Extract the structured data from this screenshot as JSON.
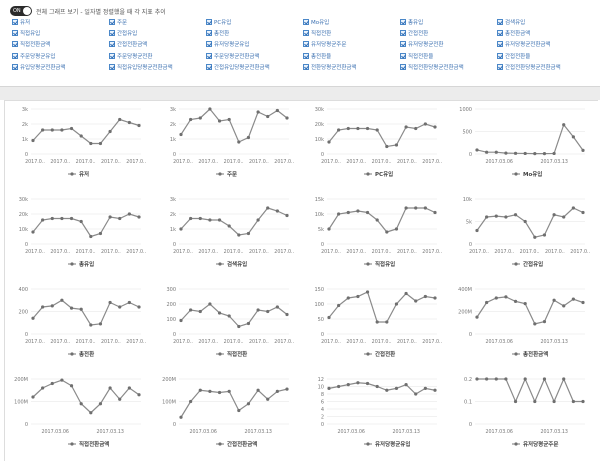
{
  "toggle": {
    "state": "ON",
    "label": "전체 그래프 보기 - 일자별 정렬했을 때 각 지표 추이"
  },
  "checkboxes": [
    "유저",
    "주문",
    "PC유입",
    "Mo유입",
    "총유입",
    "검색유입",
    "직접유입",
    "간접유입",
    "총전환",
    "직접전환",
    "간접전환",
    "총전환금액",
    "직접전환금액",
    "간접전환금액",
    "유저당평균유입",
    "유저당평균주문",
    "유저당평균전환",
    "유저당평균전환금액",
    "주문당평균유입",
    "주문당평균전환",
    "주문당평균전환금액",
    "총전환율",
    "직접전환율",
    "간접전환율",
    "유입당평균전환금액",
    "직접유입당평균전환금액",
    "간접유입당평균전환금액",
    "전환당평균전환금액",
    "직접전환당평균전환금액",
    "간접전환당평균전환금액"
  ],
  "chart_data": [
    {
      "type": "line",
      "series": [
        {
          "name": "유저",
          "values": [
            0.9,
            1.6,
            1.6,
            1.6,
            1.7,
            1.2,
            0.7,
            0.7,
            1.5,
            2.3,
            2.1,
            1.9
          ]
        }
      ],
      "ylim": [
        0,
        3
      ],
      "yticks": [
        "0",
        "1k",
        "2k",
        "3k"
      ],
      "xticks": [
        "2017.0..",
        "2017.0..",
        "2017.0..",
        "2017.0..",
        "2017.0.."
      ]
    },
    {
      "type": "line",
      "series": [
        {
          "name": "주문",
          "values": [
            1.3,
            2.3,
            2.4,
            3.0,
            2.2,
            2.3,
            0.8,
            1.1,
            2.8,
            2.5,
            2.9,
            2.4
          ]
        }
      ],
      "ylim": [
        0,
        3
      ],
      "yticks": [
        "0",
        "1k",
        "2k",
        "3k"
      ],
      "xticks": [
        "2017.0..",
        "2017.0..",
        "2017.0..",
        "2017.0..",
        "2017.0.."
      ]
    },
    {
      "type": "line",
      "series": [
        {
          "name": "PC유입",
          "values": [
            8,
            16,
            17,
            17,
            17,
            16,
            5,
            6,
            18,
            17,
            20,
            18
          ]
        }
      ],
      "ylim": [
        0,
        30
      ],
      "yticks": [
        "0",
        "10k",
        "20k",
        "30k"
      ],
      "xticks": [
        "2017.0..",
        "2017.0..",
        "2017.0..",
        "2017.0..",
        "2017.0.."
      ]
    },
    {
      "type": "line",
      "series": [
        {
          "name": "Mo유입",
          "values": [
            90,
            40,
            40,
            20,
            15,
            12,
            8,
            8,
            12,
            650,
            380,
            80
          ]
        }
      ],
      "ylim": [
        0,
        1000
      ],
      "yticks": [
        "0",
        "500",
        "1000"
      ],
      "xticks": [
        "2017.03.06",
        "2017.03.13"
      ]
    },
    {
      "type": "line",
      "series": [
        {
          "name": "총유입",
          "values": [
            8,
            16,
            17,
            17,
            17,
            15,
            5,
            7,
            18,
            17,
            20,
            18
          ]
        }
      ],
      "ylim": [
        0,
        30
      ],
      "yticks": [
        "0",
        "10k",
        "20k",
        "30k"
      ],
      "xticks": [
        "2017.0..",
        "2017.0..",
        "2017.0..",
        "2017.0..",
        "2017.0.."
      ]
    },
    {
      "type": "line",
      "series": [
        {
          "name": "검색유입",
          "values": [
            1.0,
            1.7,
            1.7,
            1.6,
            1.6,
            1.2,
            0.6,
            0.7,
            1.6,
            2.4,
            2.2,
            1.9
          ]
        }
      ],
      "ylim": [
        0,
        3
      ],
      "yticks": [
        "0",
        "1k",
        "2k",
        "3k"
      ],
      "xticks": [
        "2017.0..",
        "2017.0..",
        "2017.0..",
        "2017.0..",
        "2017.0.."
      ]
    },
    {
      "type": "line",
      "series": [
        {
          "name": "직접유입",
          "values": [
            5,
            10,
            10.5,
            11,
            10.5,
            8,
            4,
            5,
            12,
            12,
            12,
            10.5
          ]
        }
      ],
      "ylim": [
        0,
        15
      ],
      "yticks": [
        "0",
        "5k",
        "10k",
        "15k"
      ],
      "xticks": [
        "2017.0..",
        "2017.0..",
        "2017.0..",
        "2017.0..",
        "2017.0.."
      ]
    },
    {
      "type": "line",
      "series": [
        {
          "name": "간접유입",
          "values": [
            3,
            6,
            6.2,
            6,
            6.5,
            5,
            1.5,
            2,
            6.5,
            6,
            8,
            7
          ]
        }
      ],
      "ylim": [
        0,
        10
      ],
      "yticks": [
        "0",
        "5k",
        "10k"
      ],
      "xticks": [
        "2017.0..",
        "2017.0..",
        "2017.0..",
        "2017.0..",
        "2017.0.."
      ]
    },
    {
      "type": "line",
      "series": [
        {
          "name": "총전환",
          "values": [
            140,
            240,
            250,
            300,
            230,
            220,
            80,
            90,
            280,
            240,
            280,
            240
          ]
        }
      ],
      "ylim": [
        0,
        400
      ],
      "yticks": [
        "0",
        "200",
        "400"
      ],
      "xticks": [
        "2017.0..",
        "2017.0..",
        "2017.0..",
        "2017.0..",
        "2017.0.."
      ]
    },
    {
      "type": "line",
      "series": [
        {
          "name": "직접전환",
          "values": [
            90,
            160,
            150,
            200,
            140,
            120,
            50,
            70,
            160,
            150,
            180,
            130
          ]
        }
      ],
      "ylim": [
        0,
        300
      ],
      "yticks": [
        "0",
        "100",
        "200",
        "300"
      ],
      "xticks": [
        "2017.0..",
        "2017.0..",
        "2017.0..",
        "2017.0..",
        "2017.0.."
      ]
    },
    {
      "type": "line",
      "series": [
        {
          "name": "간접전환",
          "values": [
            55,
            95,
            120,
            125,
            140,
            40,
            40,
            100,
            135,
            110,
            125,
            120
          ]
        }
      ],
      "ylim": [
        0,
        150
      ],
      "yticks": [
        "0",
        "50",
        "100",
        "150"
      ],
      "xticks": [
        "2017.0..",
        "2017.0..",
        "2017.0..",
        "2017.0..",
        "2017.0.."
      ]
    },
    {
      "type": "line",
      "series": [
        {
          "name": "총전환금액",
          "values": [
            150,
            280,
            320,
            330,
            290,
            270,
            90,
            110,
            300,
            250,
            310,
            280
          ]
        }
      ],
      "ylim": [
        0,
        400
      ],
      "yticks": [
        "0",
        "200M",
        "400M"
      ],
      "xticks": [
        "2017.03.06",
        "2017.03.13"
      ]
    },
    {
      "type": "line",
      "series": [
        {
          "name": "직접전환금액",
          "values": [
            120,
            160,
            180,
            195,
            170,
            90,
            50,
            90,
            160,
            110,
            160,
            130
          ]
        }
      ],
      "ylim": [
        0,
        200
      ],
      "yticks": [
        "0",
        "100M",
        "200M"
      ],
      "xticks": [
        "2017.03.06",
        "2017.03.13"
      ]
    },
    {
      "type": "line",
      "series": [
        {
          "name": "간접전환금액",
          "values": [
            30,
            100,
            150,
            145,
            140,
            145,
            60,
            90,
            150,
            110,
            145,
            155
          ]
        }
      ],
      "ylim": [
        0,
        200
      ],
      "yticks": [
        "0",
        "100M",
        "200M"
      ],
      "xticks": [
        "2017.03.06",
        "2017.03.13"
      ]
    },
    {
      "type": "line",
      "series": [
        {
          "name": "유저당평균유입",
          "values": [
            9.5,
            10,
            10.5,
            11,
            10.8,
            10,
            9,
            9.5,
            10.5,
            8,
            9.5,
            9
          ]
        }
      ],
      "ylim": [
        0,
        12
      ],
      "yticks": [
        "0",
        "2",
        "4",
        "6",
        "8",
        "10",
        "12"
      ],
      "xticks": [
        "2017.03.06",
        "2017.03.13"
      ]
    },
    {
      "type": "line",
      "series": [
        {
          "name": "유저당평균주문",
          "values": [
            0.2,
            0.2,
            0.2,
            0.2,
            0.1,
            0.2,
            0.1,
            0.2,
            0.1,
            0.2,
            0.1,
            0.1
          ]
        }
      ],
      "ylim": [
        0,
        0.2
      ],
      "yticks": [
        "0",
        "0.1",
        "0.2"
      ],
      "xticks": [
        "2017.03.06",
        "2017.03.13"
      ]
    }
  ]
}
